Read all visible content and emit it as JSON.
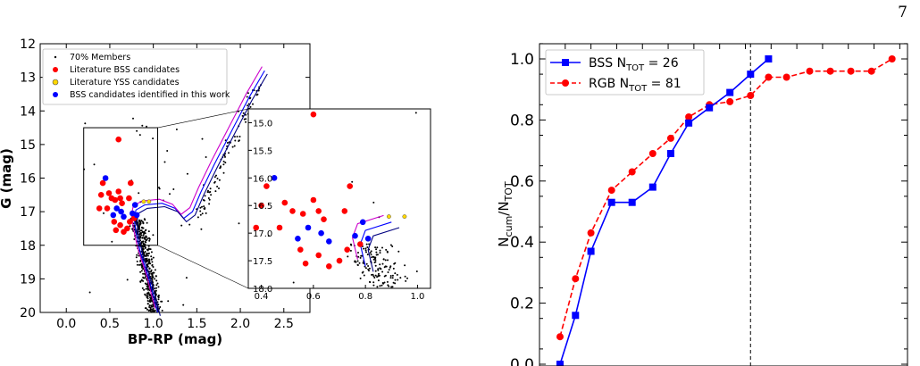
{
  "page_number": "7",
  "chart_data": [
    {
      "type": "scatter",
      "title": "",
      "xlabel": "BP-RP (mag)",
      "ylabel": "G (mag)",
      "xlim": [
        -0.3,
        2.8
      ],
      "ylim": [
        20,
        12
      ],
      "y_inverted": true,
      "xticks": [
        "0.0",
        "0.5",
        "1.0",
        "1.5",
        "2.0",
        "2.5"
      ],
      "yticks": [
        "12",
        "13",
        "14",
        "15",
        "16",
        "17",
        "18",
        "19",
        "20"
      ],
      "legend": {
        "placement": "top-left",
        "entries": [
          {
            "label": "70% Members",
            "marker": "dot",
            "color": "#000000"
          },
          {
            "label": "Literature BSS candidates",
            "marker": "circle",
            "color": "#ff0000"
          },
          {
            "label": "Literature YSS candidates",
            "marker": "circle",
            "color": "#ffd700"
          },
          {
            "label": "BSS candidates identified in this work",
            "marker": "circle",
            "color": "#0000ff"
          }
        ]
      },
      "series": [
        {
          "name": "Literature BSS candidates",
          "color": "#ff0000",
          "points": [
            [
              0.6,
              14.85
            ],
            [
              0.42,
              16.15
            ],
            [
              0.4,
              16.5
            ],
            [
              0.49,
              16.45
            ],
            [
              0.38,
              16.9
            ],
            [
              0.47,
              16.9
            ],
            [
              0.52,
              16.6
            ],
            [
              0.56,
              16.65
            ],
            [
              0.6,
              16.4
            ],
            [
              0.62,
              16.6
            ],
            [
              0.64,
              16.75
            ],
            [
              0.72,
              16.6
            ],
            [
              0.74,
              16.15
            ],
            [
              0.55,
              17.3
            ],
            [
              0.57,
              17.55
            ],
            [
              0.62,
              17.4
            ],
            [
              0.66,
              17.6
            ],
            [
              0.7,
              17.5
            ],
            [
              0.73,
              17.3
            ],
            [
              0.78,
              17.2
            ]
          ]
        },
        {
          "name": "Literature YSS candidates",
          "color": "#ffd700",
          "points": [
            [
              0.89,
              16.7
            ],
            [
              0.95,
              16.7
            ]
          ]
        },
        {
          "name": "BSS candidates identified in this work",
          "color": "#0000ff",
          "points": [
            [
              0.45,
              16.0
            ],
            [
              0.54,
              17.1
            ],
            [
              0.58,
              16.9
            ],
            [
              0.63,
              17.0
            ],
            [
              0.66,
              17.15
            ],
            [
              0.76,
              17.05
            ],
            [
              0.81,
              17.1
            ],
            [
              0.79,
              16.8
            ]
          ]
        }
      ],
      "inset": {
        "xlim": [
          0.35,
          1.05
        ],
        "ylim": [
          18.0,
          14.75
        ],
        "xticks": [
          "0.4",
          "0.6",
          "0.8",
          "1.0"
        ],
        "yticks": [
          "15.0",
          "15.5",
          "16.0",
          "16.5",
          "17.0",
          "17.5",
          "18.0"
        ],
        "zoom_box_x": [
          0.2,
          1.05
        ],
        "zoom_box_y": [
          14.5,
          18.0
        ]
      },
      "isochrone_colors": [
        "#0000ff",
        "#cc00cc",
        "#000080"
      ]
    },
    {
      "type": "line",
      "title": "",
      "xlabel": "",
      "ylabel": "N_cum/N_TOT",
      "ylim": [
        0.0,
        1.05
      ],
      "yticks": [
        "0.0",
        "0.2",
        "0.4",
        "0.6",
        "0.8",
        "1.0"
      ],
      "legend": {
        "placement": "top-left",
        "entries": [
          {
            "label": "BSS N_TOT = 26",
            "color": "#0000ff"
          },
          {
            "label": "RGB N_TOT = 81",
            "color": "#ff0000"
          }
        ]
      },
      "vline_x": 0.82,
      "series": [
        {
          "name": "BSS N_TOT = 26",
          "color": "#0000ff",
          "marker": "square",
          "linestyle": "solid",
          "x": [
            0.08,
            0.14,
            0.2,
            0.28,
            0.36,
            0.44,
            0.51,
            0.58,
            0.66,
            0.74,
            0.82,
            0.89,
            0.96,
            1.03
          ],
          "y": [
            0.0,
            0.16,
            0.37,
            0.53,
            0.53,
            0.58,
            0.69,
            0.79,
            0.84,
            0.89,
            0.95,
            1.0,
            null,
            null
          ]
        },
        {
          "name": "RGB N_TOT = 81",
          "color": "#ff0000",
          "marker": "circle",
          "linestyle": "dashed",
          "x": [],
          "y": []
        }
      ]
    }
  ],
  "right_series_xy": {
    "bss": [
      [
        0.08,
        0.0
      ],
      [
        0.14,
        0.16
      ],
      [
        0.2,
        0.37
      ],
      [
        0.28,
        0.53
      ],
      [
        0.36,
        0.53
      ],
      [
        0.44,
        0.58
      ],
      [
        0.51,
        0.69
      ],
      [
        0.58,
        0.79
      ],
      [
        0.66,
        0.84
      ],
      [
        0.74,
        0.89
      ],
      [
        0.82,
        0.95
      ],
      [
        0.89,
        1.0
      ]
    ],
    "rgb": [
      [
        0.08,
        0.09
      ],
      [
        0.14,
        0.28
      ],
      [
        0.2,
        0.43
      ],
      [
        0.28,
        0.57
      ],
      [
        0.36,
        0.63
      ],
      [
        0.44,
        0.69
      ],
      [
        0.51,
        0.74
      ],
      [
        0.58,
        0.81
      ],
      [
        0.66,
        0.85
      ],
      [
        0.74,
        0.86
      ],
      [
        0.82,
        0.88
      ],
      [
        0.89,
        0.94
      ],
      [
        0.96,
        0.94
      ],
      [
        1.05,
        0.96
      ],
      [
        1.13,
        0.96
      ],
      [
        1.21,
        0.96
      ],
      [
        1.29,
        0.96
      ],
      [
        1.37,
        1.0
      ]
    ]
  }
}
